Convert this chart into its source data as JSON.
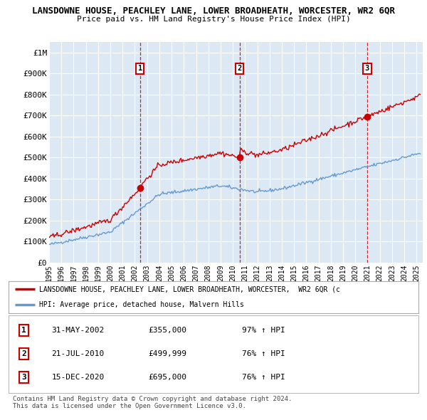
{
  "title": "LANSDOWNE HOUSE, PEACHLEY LANE, LOWER BROADHEATH, WORCESTER, WR2 6QR",
  "subtitle": "Price paid vs. HM Land Registry's House Price Index (HPI)",
  "ylabel_ticks": [
    "£0",
    "£100K",
    "£200K",
    "£300K",
    "£400K",
    "£500K",
    "£600K",
    "£700K",
    "£800K",
    "£900K",
    "£1M"
  ],
  "ytick_values": [
    0,
    100000,
    200000,
    300000,
    400000,
    500000,
    600000,
    700000,
    800000,
    900000,
    1000000
  ],
  "ylim": [
    0,
    1050000
  ],
  "xmin": 1995.0,
  "xmax": 2025.5,
  "plot_bg_color": "#dce9f5",
  "grid_color": "#ffffff",
  "sale_dates": [
    2002.42,
    2010.55,
    2020.96
  ],
  "sale_prices": [
    355000,
    499999,
    695000
  ],
  "sale_labels": [
    "1",
    "2",
    "3"
  ],
  "legend_red_label": "LANSDOWNE HOUSE, PEACHLEY LANE, LOWER BROADHEATH, WORCESTER,  WR2 6QR (c",
  "legend_blue_label": "HPI: Average price, detached house, Malvern Hills",
  "table_data": [
    [
      "1",
      "31-MAY-2002",
      "£355,000",
      "97% ↑ HPI"
    ],
    [
      "2",
      "21-JUL-2010",
      "£499,999",
      "76% ↑ HPI"
    ],
    [
      "3",
      "15-DEC-2020",
      "£695,000",
      "76% ↑ HPI"
    ]
  ],
  "footer_text": "Contains HM Land Registry data © Crown copyright and database right 2024.\nThis data is licensed under the Open Government Licence v3.0.",
  "red_line_color": "#cc0000",
  "blue_line_color": "#6699cc"
}
